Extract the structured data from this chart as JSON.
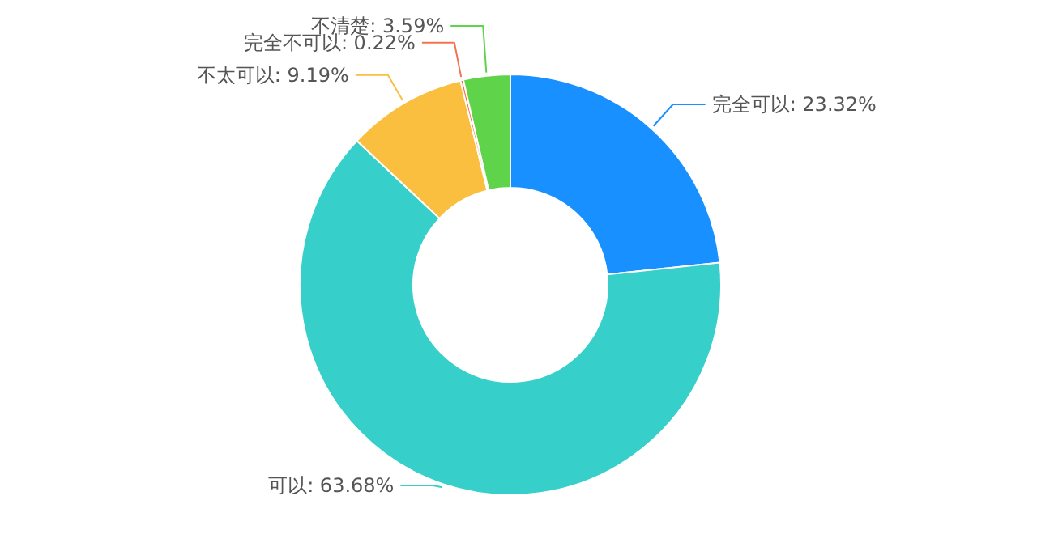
{
  "chart_data": {
    "type": "donut",
    "categories": [
      "完全可以",
      "可以",
      "不太可以",
      "完全不可以",
      "不清楚"
    ],
    "values": [
      23.32,
      63.68,
      9.19,
      0.22,
      3.59
    ],
    "colors": [
      "#1890ff",
      "#36cfc9",
      "#fbbf40",
      "#f4734f",
      "#5fd34a"
    ],
    "value_labels": [
      ": 23.32%",
      ": 63.68%",
      ": 9.19%",
      ": 0.22%",
      ": 3.59%"
    ]
  }
}
